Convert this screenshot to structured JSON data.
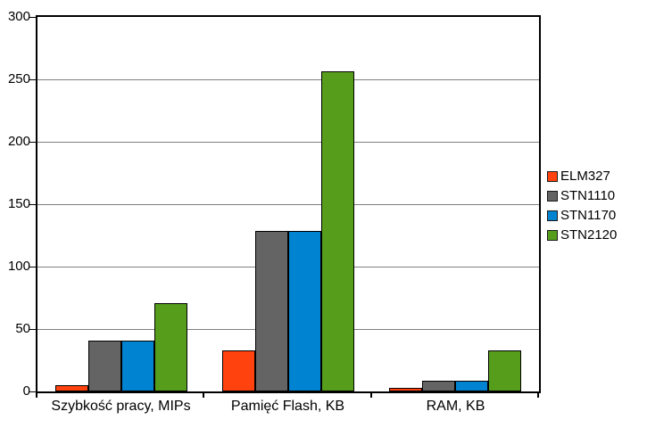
{
  "chart_data": {
    "type": "bar",
    "title": "",
    "categories": [
      "Szybkość pracy, MIPs",
      "Pamięć Flash, KB",
      "RAM, KB"
    ],
    "series": [
      {
        "name": "ELM327",
        "color": "#FF420E",
        "values": [
          4,
          32,
          2
        ]
      },
      {
        "name": "STN1110",
        "color": "#646464",
        "values": [
          40,
          128,
          8
        ]
      },
      {
        "name": "STN1170",
        "color": "#0084D1",
        "values": [
          40,
          128,
          8
        ]
      },
      {
        "name": "STN2120",
        "color": "#579D1C",
        "values": [
          70,
          256,
          32
        ]
      }
    ],
    "ylim": [
      0,
      300
    ],
    "ytick_interval": 50,
    "ytick_labels": [
      "0",
      "50",
      "100",
      "150",
      "200",
      "250",
      "300"
    ],
    "grid": true,
    "legend_position": "right",
    "colors": {
      "background": "#FFFFFF",
      "gridline": "#808080",
      "axis": "#000000",
      "text": "#000000"
    }
  }
}
